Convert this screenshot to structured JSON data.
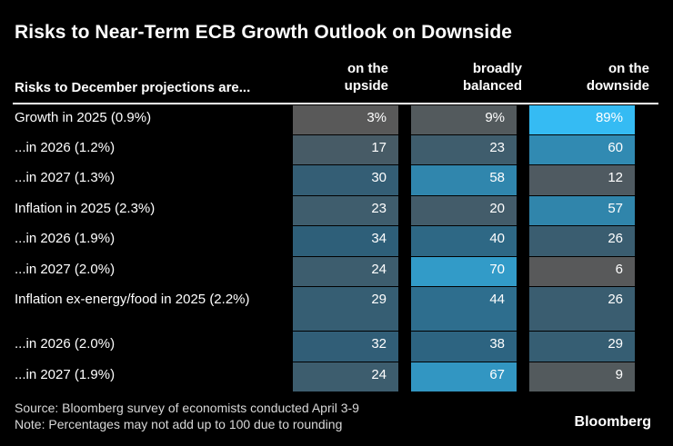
{
  "chart_data": {
    "type": "table",
    "title": "Risks to Near-Term ECB Growth Outlook on Downside",
    "row_header": "Risks to December projections are...",
    "columns": [
      {
        "line1": "on the",
        "line2": "upside"
      },
      {
        "line1": "broadly",
        "line2": "balanced"
      },
      {
        "line1": "on the",
        "line2": "downside"
      }
    ],
    "rows": [
      {
        "label": "Growth in 2025 (0.9%)",
        "values": [
          "3%",
          "9%",
          "89%"
        ]
      },
      {
        "label": "...in 2026 (1.2%)",
        "values": [
          "17",
          "23",
          "60"
        ]
      },
      {
        "label": "...in 2027 (1.3%)",
        "values": [
          "30",
          "58",
          "12"
        ]
      },
      {
        "label": "Inflation in 2025 (2.3%)",
        "values": [
          "23",
          "20",
          "57"
        ]
      },
      {
        "label": "...in 2026 (1.9%)",
        "values": [
          "34",
          "40",
          "26"
        ]
      },
      {
        "label": "...in 2027 (2.0%)",
        "values": [
          "24",
          "70",
          "6"
        ]
      },
      {
        "label": "Inflation ex-energy/food in 2025 (2.2%)",
        "values": [
          "29",
          "44",
          "26"
        ]
      },
      {
        "label": "...in 2026 (2.0%)",
        "values": [
          "32",
          "38",
          "29"
        ]
      },
      {
        "label": "...in 2027 (1.9%)",
        "values": [
          "24",
          "67",
          "9"
        ]
      }
    ],
    "numeric_values": [
      [
        3,
        9,
        89
      ],
      [
        17,
        23,
        60
      ],
      [
        30,
        58,
        12
      ],
      [
        23,
        20,
        57
      ],
      [
        34,
        40,
        26
      ],
      [
        24,
        70,
        6
      ],
      [
        29,
        44,
        26
      ],
      [
        32,
        38,
        29
      ],
      [
        24,
        67,
        9
      ]
    ],
    "color_scale": {
      "low": "#595959",
      "mid": "#2d5f7a",
      "high": "#35bdf5"
    }
  },
  "footer": {
    "source": "Source: Bloomberg survey of economists conducted April 3-9",
    "note": "Note: Percentages may not add up to 100 due to rounding"
  },
  "brand": "Bloomberg"
}
